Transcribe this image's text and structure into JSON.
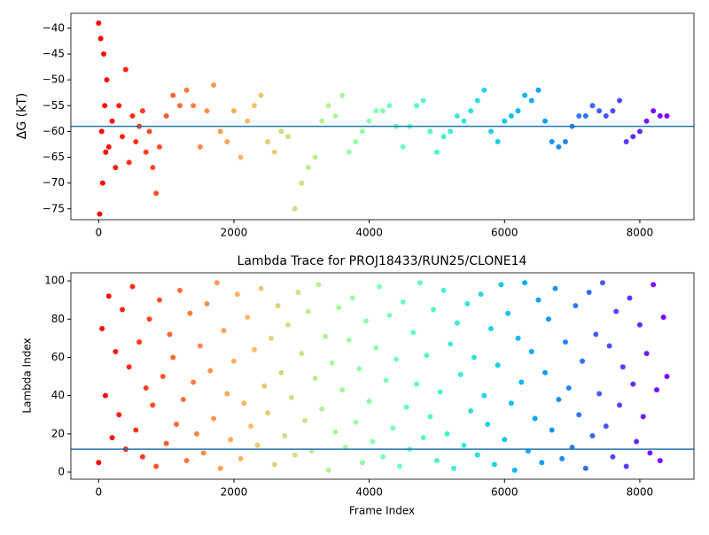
{
  "chart_data": [
    {
      "type": "scatter",
      "ylabel": "ΔG (kT)",
      "colormap": "rainbow_r",
      "hline": -59,
      "hline_color": "#1f77b4",
      "xlim": [
        -410,
        8800
      ],
      "ylim": [
        -77.1,
        -37.1
      ],
      "xticks": [
        0,
        2000,
        4000,
        6000,
        8000
      ],
      "yticks": [
        {
          "value": -75,
          "label": "−75"
        },
        {
          "value": -70,
          "label": "−70"
        },
        {
          "value": -65,
          "label": "−65"
        },
        {
          "value": -60,
          "label": "−60"
        },
        {
          "value": -55,
          "label": "−55"
        },
        {
          "value": -50,
          "label": "−50"
        },
        {
          "value": -45,
          "label": "−45"
        },
        {
          "value": -40,
          "label": "−40"
        }
      ],
      "x": [
        0,
        15,
        30,
        45,
        60,
        75,
        90,
        105,
        120,
        150,
        200,
        250,
        300,
        350,
        400,
        450,
        500,
        550,
        600,
        650,
        700,
        750,
        800,
        850,
        900,
        1000,
        1100,
        1200,
        1300,
        1400,
        1500,
        1600,
        1700,
        1800,
        1900,
        2000,
        2100,
        2200,
        2300,
        2400,
        2500,
        2600,
        2700,
        2800,
        2900,
        3000,
        3100,
        3200,
        3300,
        3400,
        3500,
        3600,
        3700,
        3800,
        3900,
        4000,
        4100,
        4200,
        4300,
        4400,
        4500,
        4600,
        4700,
        4800,
        4900,
        5000,
        5100,
        5200,
        5300,
        5400,
        5500,
        5600,
        5700,
        5800,
        5900,
        6000,
        6100,
        6200,
        6300,
        6400,
        6500,
        6600,
        6700,
        6800,
        6900,
        7000,
        7100,
        7200,
        7300,
        7400,
        7500,
        7600,
        7700,
        7800,
        7900,
        8000,
        8100,
        8200,
        8300,
        8400
      ],
      "values": [
        -39,
        -76,
        -42,
        -60,
        -70,
        -45,
        -55,
        -64,
        -50,
        -63,
        -58,
        -67,
        -55,
        -61,
        -48,
        -66,
        -57,
        -62,
        -59,
        -56,
        -64,
        -60,
        -67,
        -72,
        -63,
        -57,
        -53,
        -55,
        -52,
        -55,
        -63,
        -56,
        -51,
        -60,
        -62,
        -56,
        -65,
        -58,
        -55,
        -53,
        -62,
        -64,
        -60,
        -61,
        -75,
        -70,
        -67,
        -65,
        -58,
        -55,
        -57,
        -53,
        -64,
        -62,
        -60,
        -58,
        -56,
        -56,
        -55,
        -59,
        -63,
        -59,
        -55,
        -54,
        -60,
        -64,
        -61,
        -60,
        -57,
        -58,
        -56,
        -54,
        -52,
        -60,
        -62,
        -58,
        -57,
        -56,
        -53,
        -54,
        -52,
        -58,
        -62,
        -63,
        -62,
        -59,
        -57,
        -57,
        -55,
        -56,
        -57,
        -56,
        -54,
        -62,
        -61,
        -60,
        -58,
        -56,
        -57,
        -57
      ]
    },
    {
      "type": "scatter",
      "title": "Lambda Trace for PROJ18433/RUN25/CLONE14",
      "xlabel": "Frame Index",
      "ylabel": "Lambda Index",
      "colormap": "rainbow_r",
      "hline": 12,
      "hline_color": "#1f77b4",
      "xlim": [
        -410,
        8800
      ],
      "ylim": [
        -3.7,
        104.2
      ],
      "xticks": [
        0,
        2000,
        4000,
        6000,
        8000
      ],
      "yticks": [
        0,
        20,
        40,
        60,
        80,
        100
      ],
      "x": [
        0,
        50,
        100,
        150,
        200,
        250,
        300,
        350,
        400,
        450,
        500,
        550,
        600,
        650,
        700,
        750,
        800,
        850,
        900,
        950,
        1000,
        1050,
        1100,
        1150,
        1200,
        1250,
        1300,
        1350,
        1400,
        1450,
        1500,
        1550,
        1600,
        1650,
        1700,
        1750,
        1800,
        1850,
        1900,
        1950,
        2000,
        2050,
        2100,
        2150,
        2200,
        2250,
        2300,
        2350,
        2400,
        2450,
        2500,
        2550,
        2600,
        2650,
        2700,
        2750,
        2800,
        2850,
        2900,
        2950,
        3000,
        3050,
        3100,
        3150,
        3200,
        3250,
        3300,
        3350,
        3400,
        3450,
        3500,
        3550,
        3600,
        3650,
        3700,
        3750,
        3800,
        3850,
        3900,
        3950,
        4000,
        4050,
        4100,
        4150,
        4200,
        4250,
        4300,
        4350,
        4400,
        4450,
        4500,
        4550,
        4600,
        4650,
        4700,
        4750,
        4800,
        4850,
        4900,
        4950,
        5000,
        5050,
        5100,
        5150,
        5200,
        5250,
        5300,
        5350,
        5400,
        5450,
        5500,
        5550,
        5600,
        5650,
        5700,
        5750,
        5800,
        5850,
        5900,
        5950,
        6000,
        6050,
        6100,
        6150,
        6200,
        6250,
        6300,
        6350,
        6400,
        6450,
        6500,
        6550,
        6600,
        6650,
        6700,
        6750,
        6800,
        6850,
        6900,
        6950,
        7000,
        7050,
        7100,
        7150,
        7200,
        7250,
        7300,
        7350,
        7400,
        7450,
        7500,
        7550,
        7600,
        7650,
        7700,
        7750,
        7800,
        7850,
        7900,
        7950,
        8000,
        8050,
        8100,
        8150,
        8200,
        8250,
        8300,
        8350,
        8400
      ],
      "values": [
        5,
        75,
        40,
        92,
        18,
        63,
        30,
        85,
        12,
        55,
        97,
        22,
        68,
        8,
        44,
        80,
        35,
        3,
        90,
        50,
        15,
        72,
        60,
        25,
        95,
        38,
        6,
        83,
        47,
        20,
        66,
        10,
        88,
        53,
        28,
        99,
        2,
        74,
        41,
        17,
        58,
        93,
        7,
        36,
        81,
        24,
        64,
        14,
        96,
        45,
        31,
        70,
        4,
        87,
        52,
        19,
        77,
        39,
        9,
        94,
        62,
        27,
        84,
        11,
        49,
        98,
        33,
        71,
        1,
        57,
        21,
        86,
        43,
        13,
        69,
        91,
        26,
        54,
        5,
        79,
        37,
        16,
        65,
        97,
        8,
        48,
        82,
        23,
        59,
        3,
        89,
        34,
        12,
        73,
        46,
        99,
        18,
        61,
        29,
        85,
        6,
        42,
        95,
        20,
        67,
        2,
        78,
        51,
        14,
        88,
        32,
        60,
        9,
        93,
        40,
        25,
        75,
        4,
        56,
        98,
        17,
        83,
        36,
        1,
        70,
        47,
        99,
        11,
        63,
        28,
        90,
        5,
        52,
        80,
        22,
        96,
        38,
        7,
        68,
        44,
        13,
        87,
        30,
        58,
        2,
        94,
        19,
        72,
        41,
        99,
        24,
        66,
        8,
        84,
        35,
        55,
        3,
        91,
        46,
        16,
        77,
        29,
        62,
        10,
        98,
        43,
        6,
        81,
        50
      ]
    }
  ]
}
